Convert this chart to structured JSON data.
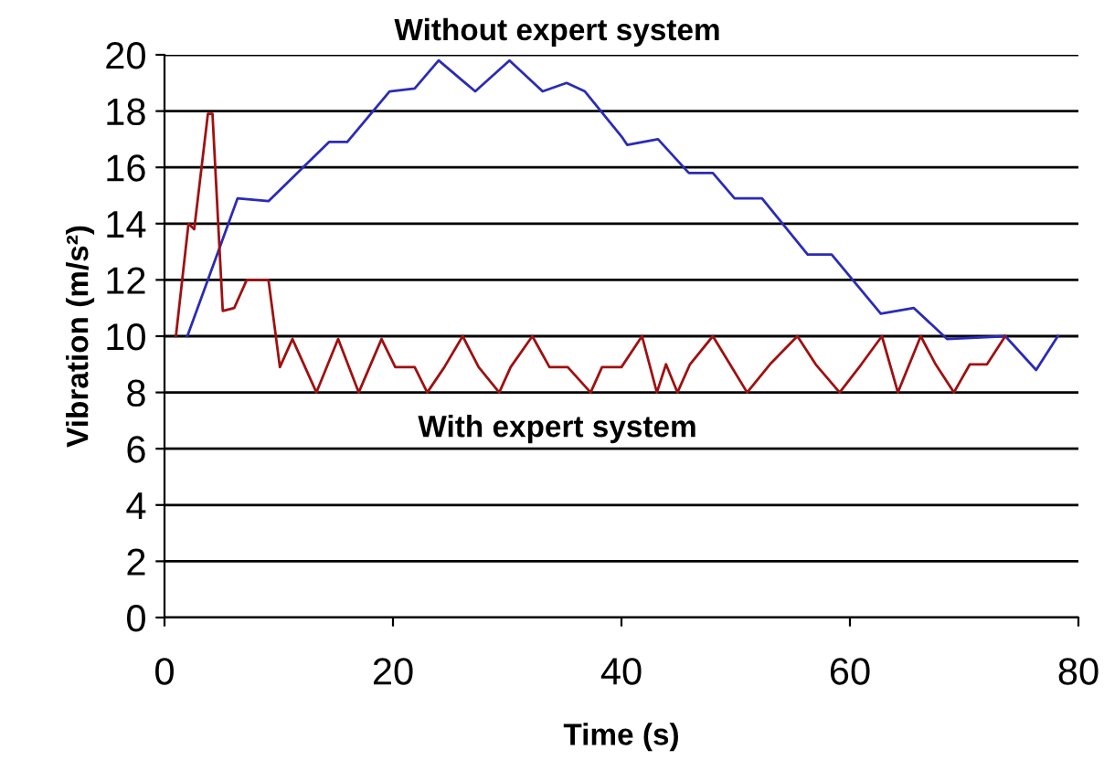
{
  "chart_data": {
    "type": "line",
    "xlabel": "Time (s)",
    "ylabel": "Vibration (m/s²)",
    "xlim": [
      0,
      80
    ],
    "xticks": [
      0,
      20,
      40,
      60,
      80
    ],
    "ylim": [
      0,
      20
    ],
    "yticks": [
      0,
      2,
      4,
      6,
      8,
      10,
      12,
      14,
      16,
      18,
      20
    ],
    "grid": "y",
    "marker": "none",
    "line_style": "solid",
    "annotations": [
      "Without expert system",
      "With expert system"
    ],
    "series": [
      {
        "color": "#2b2bb8",
        "x": [
          2,
          6.4,
          9.1,
          14.4,
          16,
          19.7,
          21.9,
          24,
          27.2,
          30.2,
          33.1,
          35.2,
          36.8,
          40,
          40.5,
          43.2,
          45.9,
          48,
          49.9,
          52.3,
          56.3,
          58.4,
          62.7,
          65.6,
          68.5,
          73.6,
          76.3,
          78.2
        ],
        "values": [
          10,
          14.9,
          14.8,
          16.9,
          16.9,
          18.7,
          18.8,
          19.8,
          18.7,
          19.8,
          18.7,
          19,
          18.7,
          17.1,
          16.8,
          17,
          15.8,
          15.8,
          14.9,
          14.9,
          12.9,
          12.9,
          10.8,
          11,
          9.9,
          10,
          8.8,
          10
        ]
      },
      {
        "color": "#a01010",
        "x": [
          1,
          2.1,
          2.6,
          3.8,
          4.2,
          5.1,
          6.1,
          7.2,
          9.1,
          10.1,
          11.2,
          13.3,
          15.2,
          17,
          19,
          20.2,
          21.9,
          23,
          24.5,
          26.1,
          27.5,
          29.3,
          30.3,
          32.2,
          33.7,
          35.3,
          37.3,
          38.3,
          40,
          41.8,
          43.1,
          43.9,
          44.9,
          46,
          48,
          49.5,
          51,
          53,
          55.4,
          57,
          59.1,
          61,
          62.8,
          64.2,
          66.2,
          67.5,
          69.1,
          70.5,
          72,
          73.6
        ],
        "values": [
          10,
          14,
          13.8,
          17.9,
          17.9,
          10.9,
          11,
          12,
          12,
          8.9,
          9.9,
          8,
          9.9,
          8,
          9.9,
          8.9,
          8.9,
          8,
          8.9,
          10,
          8.9,
          8,
          8.9,
          10,
          8.9,
          8.9,
          8,
          8.9,
          8.9,
          10,
          8,
          9,
          8,
          9,
          10,
          9,
          8,
          9,
          10,
          9,
          8,
          9,
          10,
          8,
          10,
          9,
          8,
          9,
          9,
          10
        ]
      }
    ]
  }
}
